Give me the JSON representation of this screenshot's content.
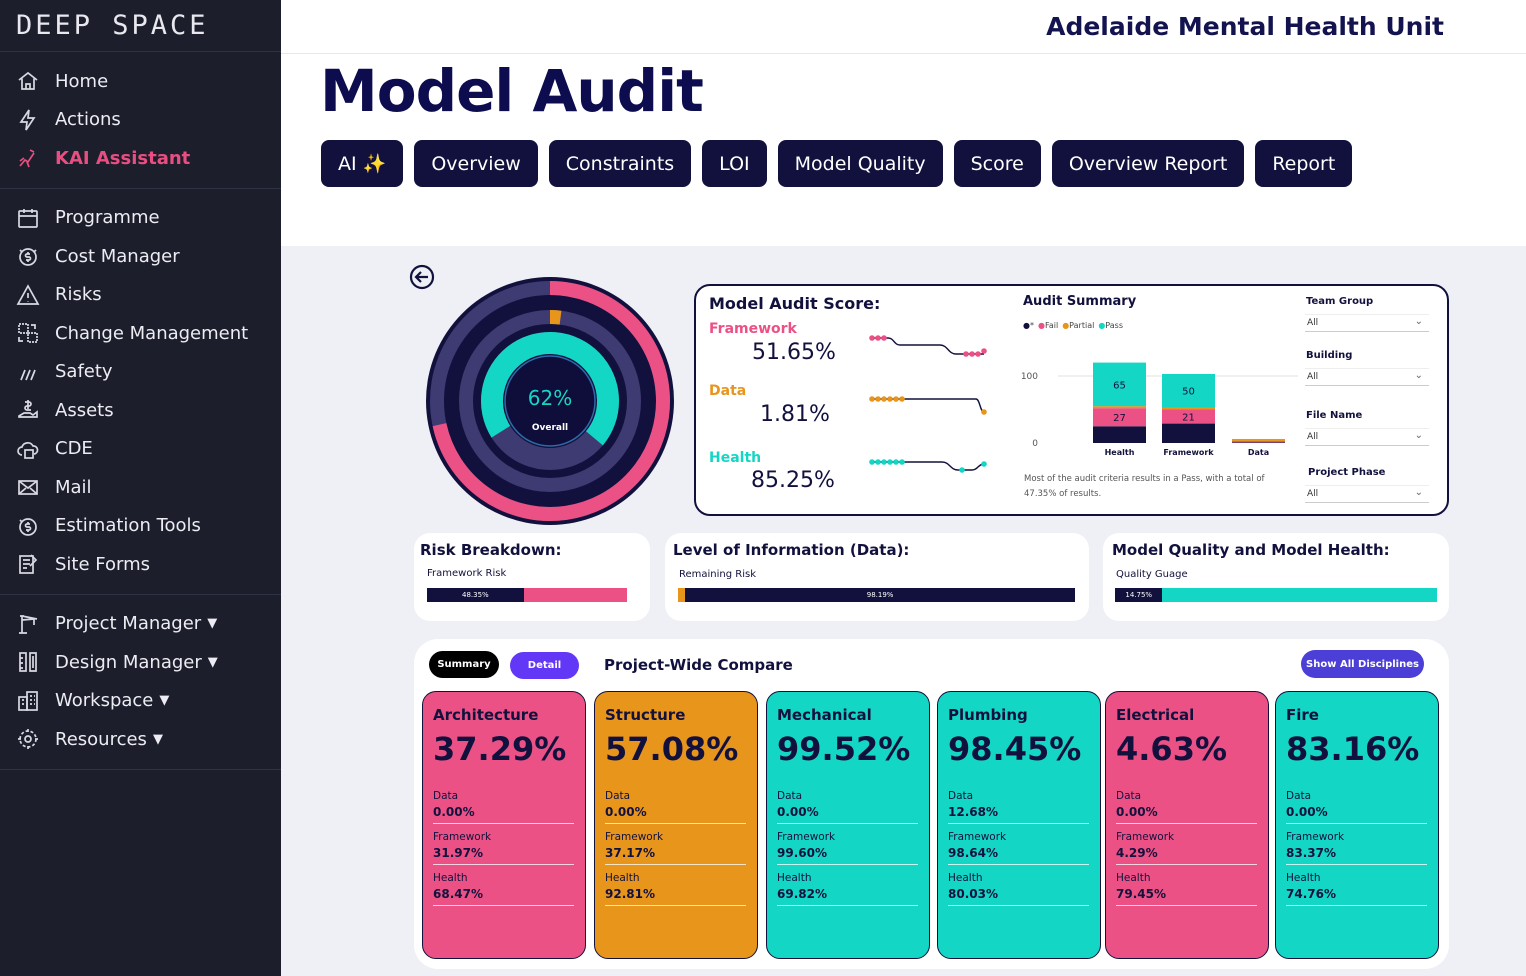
{
  "sidebar": {
    "logo": "DEEP SPACE",
    "group1": [
      {
        "label": "Home",
        "icon": "home-icon"
      },
      {
        "label": "Actions",
        "icon": "lightning-icon"
      },
      {
        "label": "KAI Assistant",
        "icon": "robot-icon"
      }
    ],
    "group2": [
      {
        "label": "Programme",
        "icon": "calendar-icon"
      },
      {
        "label": "Cost Manager",
        "icon": "cost-icon"
      },
      {
        "label": "Risks",
        "icon": "warning-icon"
      },
      {
        "label": "Change Management",
        "icon": "change-icon"
      },
      {
        "label": "Safety",
        "icon": "safety-icon"
      },
      {
        "label": "Assets",
        "icon": "assets-icon"
      },
      {
        "label": "CDE",
        "icon": "cde-icon"
      },
      {
        "label": "Mail",
        "icon": "mail-icon"
      },
      {
        "label": "Estimation Tools",
        "icon": "estimation-icon"
      },
      {
        "label": "Site Forms",
        "icon": "forms-icon"
      }
    ],
    "group3": [
      {
        "label": "Project Manager",
        "icon": "crane-icon"
      },
      {
        "label": "Design Manager",
        "icon": "design-icon"
      },
      {
        "label": "Workspace",
        "icon": "building-icon"
      },
      {
        "label": "Resources",
        "icon": "resources-icon"
      }
    ]
  },
  "header": {
    "org": "Adelaide Mental Health Unit",
    "title": "Model Audit"
  },
  "tabs": [
    "AI ✨",
    "Overview",
    "Constraints",
    "LOI",
    "Model Quality",
    "Score",
    "Overview Report",
    "Report"
  ],
  "gauge": {
    "value": "62%",
    "label": "Overall",
    "overall": 0.62,
    "health": 0.8525,
    "data": 0.0181,
    "framework": 0.5165
  },
  "score": {
    "title": "Model Audit Score:",
    "framework_label": "Framework",
    "framework_value": "51.65%",
    "data_label": "Data",
    "data_value": "1.81%",
    "health_label": "Health",
    "health_value": "85.25%"
  },
  "audit": {
    "title": "Audit Summary",
    "legend": [
      "*",
      "Fail",
      "Partial",
      "Pass"
    ],
    "note": "Most of the audit criteria results in a Pass, with a total of 47.35% of results."
  },
  "chart_data": {
    "type": "bar",
    "title": "Audit Summary",
    "categories": [
      "Health",
      "Framework",
      "Data"
    ],
    "series": [
      {
        "name": "*",
        "values": [
          25,
          29,
          1
        ]
      },
      {
        "name": "Fail",
        "values": [
          27,
          21,
          2
        ]
      },
      {
        "name": "Partial",
        "values": [
          3,
          3,
          3
        ]
      },
      {
        "name": "Pass",
        "values": [
          65,
          50,
          0
        ]
      }
    ],
    "data_labels": {
      "Health": {
        "Fail": "27",
        "Pass": "65"
      },
      "Framework": {
        "Fail": "21",
        "Pass": "50"
      }
    },
    "yticks": [
      0,
      100
    ],
    "ylim": [
      0,
      150
    ],
    "stacked": true
  },
  "filters": [
    {
      "label": "Team Group",
      "value": "All"
    },
    {
      "label": "Building",
      "value": "All"
    },
    {
      "label": "File Name",
      "value": "All"
    },
    {
      "label": "Project Phase",
      "value": "All"
    }
  ],
  "risk": {
    "title": "Risk Breakdown:",
    "bar_label": "Framework Risk",
    "value": "48.35%",
    "fraction": 0.4835
  },
  "loi": {
    "title": "Level of Information (Data):",
    "bar_label": "Remaining Risk",
    "value": "98.19%",
    "fraction": 0.9819
  },
  "quality": {
    "title": "Model Quality and Model Health:",
    "bar_label": "Quality Guage",
    "value": "14.75%",
    "fraction": 0.1475
  },
  "compare": {
    "summary_label": "Summary",
    "detail_label": "Detail",
    "title": "Project-Wide Compare",
    "show_all_label": "Show All Disciplines",
    "data_label": "Data",
    "framework_label": "Framework",
    "health_label": "Health",
    "disciplines": [
      {
        "name": "Architecture",
        "pct": "37.29%",
        "data": "0.00%",
        "framework": "31.97%",
        "health": "68.47%",
        "color": "#ec5185"
      },
      {
        "name": "Structure",
        "pct": "57.08%",
        "data": "0.00%",
        "framework": "37.17%",
        "health": "92.81%",
        "color": "#e8951c"
      },
      {
        "name": "Mechanical",
        "pct": "99.52%",
        "data": "0.00%",
        "framework": "99.60%",
        "health": "69.82%",
        "color": "#14d6c4"
      },
      {
        "name": "Plumbing",
        "pct": "98.45%",
        "data": "12.68%",
        "framework": "98.64%",
        "health": "80.03%",
        "color": "#14d6c4"
      },
      {
        "name": "Electrical",
        "pct": "4.63%",
        "data": "0.00%",
        "framework": "4.29%",
        "health": "79.45%",
        "color": "#ec5185"
      },
      {
        "name": "Fire",
        "pct": "83.16%",
        "data": "0.00%",
        "framework": "83.37%",
        "health": "74.76%",
        "color": "#14d6c4"
      }
    ]
  },
  "colors": {
    "navy": "#12113d",
    "pink": "#ec5185",
    "teal": "#14d6c4",
    "orange": "#e8951c",
    "purple": "#6237f5"
  }
}
